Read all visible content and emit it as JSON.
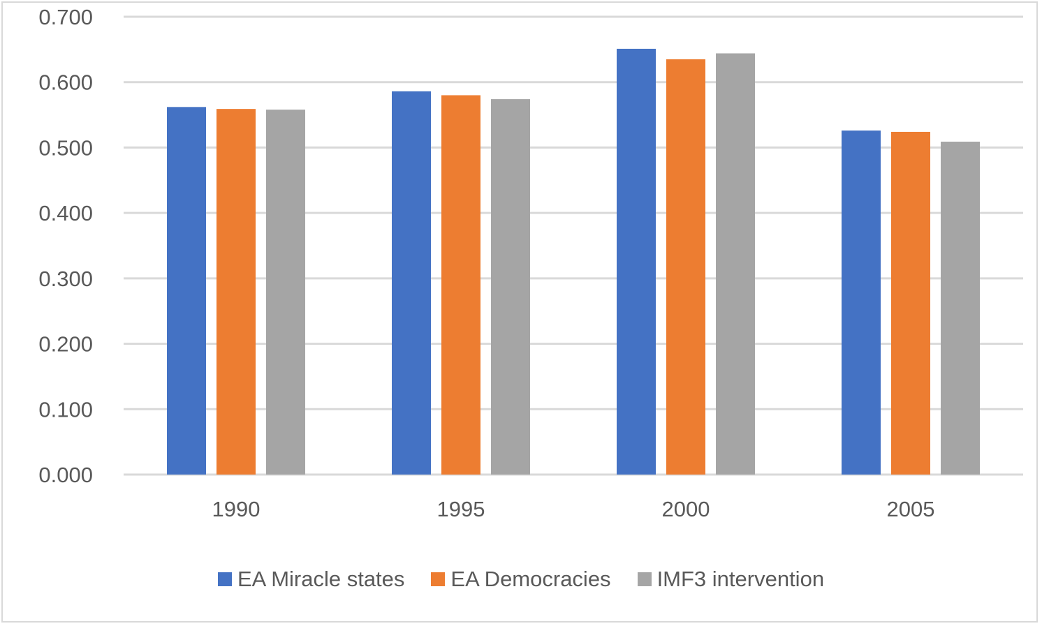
{
  "chart_data": {
    "type": "bar",
    "title": "",
    "xlabel": "",
    "ylabel": "",
    "categories": [
      "1990",
      "1995",
      "2000",
      "2005"
    ],
    "ylim": [
      0,
      0.7
    ],
    "yticks": [
      "0.000",
      "0.100",
      "0.200",
      "0.300",
      "0.400",
      "0.500",
      "0.600",
      "0.700"
    ],
    "grid": true,
    "legend_position": "bottom",
    "series": [
      {
        "name": "EA Miracle states",
        "color": "#4472c4",
        "values": [
          0.562,
          0.586,
          0.651,
          0.526
        ]
      },
      {
        "name": "EA Democracies",
        "color": "#ed7d31",
        "values": [
          0.559,
          0.58,
          0.635,
          0.524
        ]
      },
      {
        "name": "IMF3 intervention",
        "color": "#a5a5a5",
        "values": [
          0.558,
          0.574,
          0.644,
          0.509
        ]
      }
    ]
  }
}
